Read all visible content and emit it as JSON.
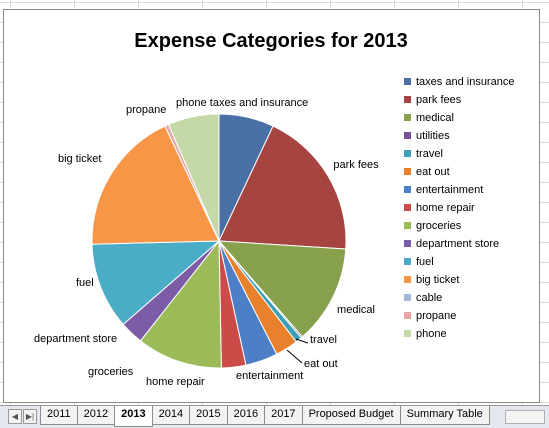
{
  "chart_data": {
    "type": "pie",
    "title": "Expense Categories for 2013",
    "legend_position": "right",
    "slices": [
      {
        "name": "taxes and insurance",
        "value": 7.0,
        "color": "#4a6fa5"
      },
      {
        "name": "park fees",
        "value": 19.0,
        "color": "#a64442"
      },
      {
        "name": "medical",
        "value": 12.6,
        "color": "#86a04b"
      },
      {
        "name": "utilities",
        "value": 0.2,
        "color": "#6f5393"
      },
      {
        "name": "travel",
        "value": 0.8,
        "color": "#3c9fb5"
      },
      {
        "name": "eat out",
        "value": 2.9,
        "color": "#e9802c"
      },
      {
        "name": "entertainment",
        "value": 4.1,
        "color": "#4d7fc7"
      },
      {
        "name": "home repair",
        "value": 3.1,
        "color": "#cc4a47"
      },
      {
        "name": "groceries",
        "value": 10.9,
        "color": "#9bbb59"
      },
      {
        "name": "department store",
        "value": 3.0,
        "color": "#7c5ca6"
      },
      {
        "name": "fuel",
        "value": 11.0,
        "color": "#4bacc6"
      },
      {
        "name": "big ticket",
        "value": 18.4,
        "color": "#f79646"
      },
      {
        "name": "cable",
        "value": 0.0,
        "color": "#a4b8dc"
      },
      {
        "name": "propane",
        "value": 0.5,
        "color": "#e6a8a6"
      },
      {
        "name": "phone",
        "value": 6.5,
        "color": "#c4d8a8"
      }
    ]
  },
  "tabs": [
    {
      "label": "2011",
      "active": false
    },
    {
      "label": "2012",
      "active": false
    },
    {
      "label": "2013",
      "active": true
    },
    {
      "label": "2014",
      "active": false
    },
    {
      "label": "2015",
      "active": false
    },
    {
      "label": "2016",
      "active": false
    },
    {
      "label": "2017",
      "active": false
    },
    {
      "label": "Proposed Budget",
      "active": false
    },
    {
      "label": "Summary Table",
      "active": false
    }
  ],
  "nav": {
    "prev_glyph": "◀",
    "last_glyph": "▶|"
  }
}
